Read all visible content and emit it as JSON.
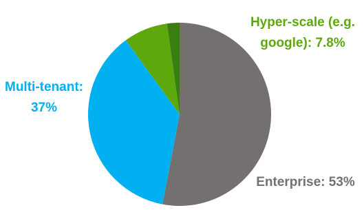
{
  "chart_data": {
    "type": "pie",
    "categories": [
      "Enterprise:",
      "Multi-tenant:",
      "Hyper-scale (e.g. google):",
      null
    ],
    "values": [
      53,
      37,
      7.8,
      2.2
    ],
    "value_labels": [
      "53%",
      "37%",
      "7.8%",
      null
    ],
    "colors": [
      "#757070",
      "#00b0f0",
      "#5ea80d",
      "#3b7d12"
    ],
    "start_angle": 0,
    "direction": "clockwise"
  }
}
